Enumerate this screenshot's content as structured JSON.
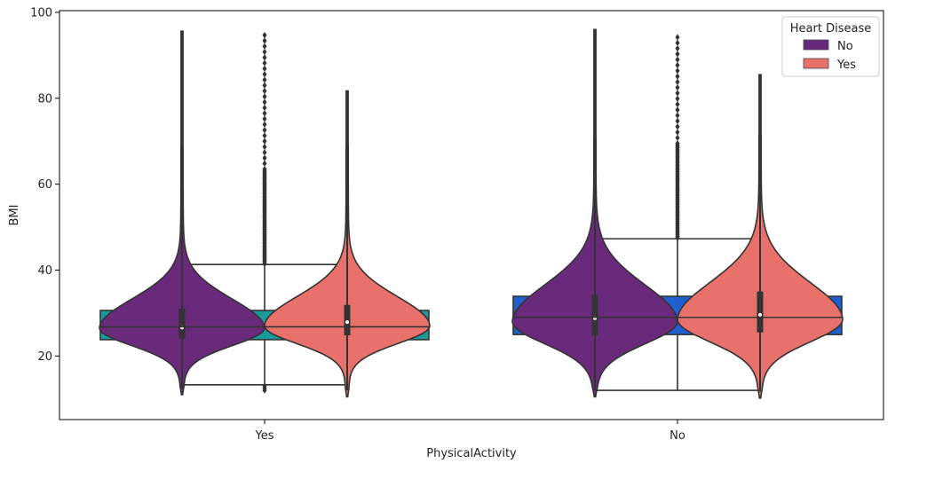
{
  "chart_data": {
    "type": "violin+box",
    "xlabel": "PhysicalActivity",
    "ylabel": "BMI",
    "ylim": [
      5.2,
      100.4
    ],
    "yticks": [
      20,
      40,
      60,
      80,
      100
    ],
    "categories": [
      "Yes",
      "No"
    ],
    "grid": false,
    "legend": {
      "title": "Heart Disease",
      "placement": "top-right",
      "entries": [
        {
          "label": "No",
          "color": "#6a2a7b"
        },
        {
          "label": "Yes",
          "color": "#e8716b"
        }
      ]
    },
    "boxes": [
      {
        "category": "Yes",
        "color": "#1a9a9a",
        "q1": 23.8,
        "median": 26.8,
        "q3": 30.6,
        "whisker_low": 13.3,
        "whisker_high": 41.3,
        "outliers_high_from": 41.5,
        "outliers_high_to": 95.0,
        "outliers_low": [
          12.0,
          12.5,
          13.0
        ]
      },
      {
        "category": "No",
        "color": "#1f5fd0",
        "q1": 25.0,
        "median": 29.0,
        "q3": 33.9,
        "whisker_low": 12.0,
        "whisker_high": 47.3,
        "outliers_high_from": 47.5,
        "outliers_high_to": 94.5,
        "outliers_low": []
      }
    ],
    "violins": [
      {
        "category": "Yes",
        "series": "No",
        "color": "#6a2a7b",
        "min": 11.0,
        "max": 95.6,
        "q1": 24.0,
        "median": 26.6,
        "q3": 31.0,
        "mode": 26.5
      },
      {
        "category": "Yes",
        "series": "Yes",
        "color": "#e8716b",
        "min": 10.5,
        "max": 81.7,
        "q1": 24.8,
        "median": 27.9,
        "q3": 31.9,
        "mode": 27.0
      },
      {
        "category": "No",
        "series": "No",
        "color": "#6a2a7b",
        "min": 10.5,
        "max": 96.0,
        "q1": 24.8,
        "median": 28.8,
        "q3": 34.2,
        "mode": 28.0
      },
      {
        "category": "No",
        "series": "Yes",
        "color": "#e8716b",
        "min": 10.2,
        "max": 85.5,
        "q1": 25.5,
        "median": 29.6,
        "q3": 35.0,
        "mode": 28.5
      }
    ]
  }
}
